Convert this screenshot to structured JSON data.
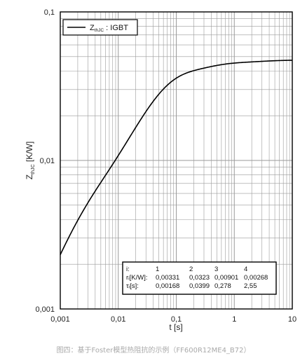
{
  "chart_data": {
    "type": "line",
    "xscale": "log",
    "yscale": "log",
    "xlim": [
      0.001,
      10
    ],
    "ylim": [
      0.001,
      0.1
    ],
    "xlabel": "t [s]",
    "ylabel_main": "Z",
    "ylabel_sub": "thJC",
    "ylabel_unit": " [K/W]",
    "xticks": [
      "0,001",
      "0,01",
      "0,1",
      "1",
      "10"
    ],
    "yticks": [
      "0,001",
      "0,01",
      "0,1"
    ],
    "grid": true,
    "legend_position": "top-left",
    "series": [
      {
        "name_main": "Z",
        "name_sub": "thJC",
        "name_rest": " : IGBT",
        "color": "#000000",
        "foster_params": {
          "r": [
            0.00331,
            0.0323,
            0.00901,
            0.00268
          ],
          "tau": [
            0.00168,
            0.0399,
            0.278,
            2.55
          ]
        }
      }
    ],
    "table": {
      "header": [
        "i:",
        "1",
        "2",
        "3",
        "4"
      ],
      "rows": [
        [
          "rᵢ[K/W]:",
          "0,00331",
          "0,0323",
          "0,00901",
          "0,00268"
        ],
        [
          "τᵢ[s]:",
          "0,00168",
          "0,0399",
          "0,278",
          "2,55"
        ]
      ]
    }
  },
  "caption": "图四：基于Foster模型热阻抗的示例（FF600R12ME4_B72）"
}
